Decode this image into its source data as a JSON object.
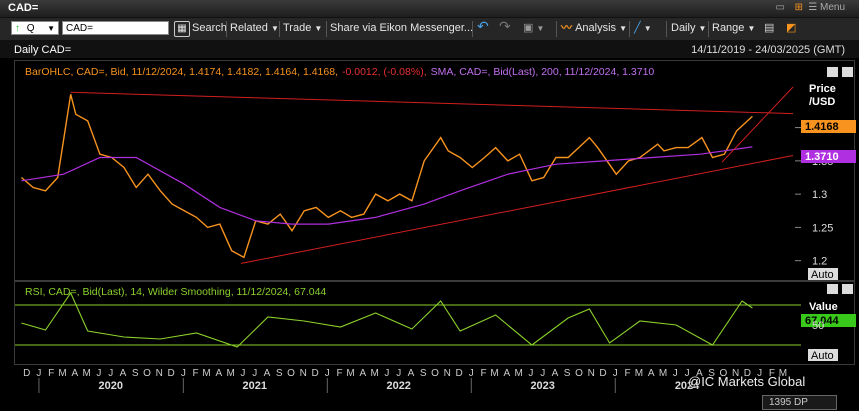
{
  "window": {
    "title": "CAD=",
    "menu_label": "Menu"
  },
  "toolbar": {
    "quote_label": "Q",
    "ric_value": "CAD=",
    "search_label": "Search",
    "related_label": "Related",
    "trade_label": "Trade",
    "share_label": "Share via Eikon Messenger...",
    "analysis_label": "Analysis",
    "interval_label": "Daily",
    "range_label": "Range"
  },
  "header": {
    "chart_title": "Daily CAD=",
    "date_range": "14/11/2019 - 24/03/2025 (GMT)"
  },
  "price_panel": {
    "legend_ohlc": "BarOHLC, CAD=, Bid, 11/12/2024, 1.4174, 1.4182, 1.4164, 1.4168,",
    "legend_change": "-0.0012, (-0.08%),",
    "legend_sma": "SMA, CAD=, Bid(Last), 200, 11/12/2024, 1.3710",
    "axis_title_1": "Price",
    "axis_title_2": "/USD",
    "last_price_tag": "1.4168",
    "sma_tag": "1.3710",
    "auto_label": "Auto",
    "colors": {
      "price": "#f7931e",
      "sma": "#b02fe0",
      "trend": "#d21f1f",
      "price_tag_bg": "#f7931e",
      "sma_tag_bg": "#b02fe0"
    }
  },
  "rsi_panel": {
    "legend": "RSI, CAD=, Bid(Last), 14, Wilder Smoothing, 11/12/2024, 67.044",
    "axis_title": "Value",
    "value_tag": "67.044",
    "auto_label": "Auto",
    "colors": {
      "rsi": "#8bd12b",
      "level": "#8bd12b",
      "tag_bg": "#39c91a"
    }
  },
  "x_axis": {
    "month_letters": [
      "D",
      "J",
      "F",
      "M",
      "A",
      "M",
      "J",
      "J",
      "A",
      "S",
      "O",
      "N",
      "D",
      "J",
      "F",
      "M",
      "A",
      "M",
      "J",
      "J",
      "A",
      "S",
      "O",
      "N",
      "D",
      "J",
      "F",
      "M",
      "A",
      "M",
      "J",
      "J",
      "A",
      "S",
      "O",
      "N",
      "D",
      "J",
      "F",
      "M",
      "A",
      "M",
      "J",
      "J",
      "A",
      "S",
      "O",
      "N",
      "D",
      "J",
      "F",
      "M",
      "A",
      "M",
      "J",
      "J",
      "A",
      "S",
      "O",
      "N",
      "D",
      "J",
      "F",
      "M"
    ],
    "years": [
      "2020",
      "2021",
      "2022",
      "2023",
      "2024"
    ]
  },
  "watermark": "@IC Markets Global",
  "footer": {
    "zoom_label": "1395 DP"
  },
  "chart_data": [
    {
      "type": "line",
      "title": "Daily CAD=",
      "ylabel": "Price /USD",
      "ylim": [
        1.18,
        1.47
      ],
      "yticks": [
        1.2,
        1.25,
        1.3,
        1.35,
        1.4
      ],
      "x_range": [
        "2019-11-14",
        "2025-03-24"
      ],
      "grid": false,
      "series": [
        {
          "name": "BarOHLC, CAD=, Bid",
          "points": [
            [
              "2019-11-15",
              1.325
            ],
            [
              "2019-12-15",
              1.31
            ],
            [
              "2020-01-15",
              1.305
            ],
            [
              "2020-02-15",
              1.325
            ],
            [
              "2020-03-19",
              1.45
            ],
            [
              "2020-04-01",
              1.42
            ],
            [
              "2020-05-01",
              1.41
            ],
            [
              "2020-06-01",
              1.36
            ],
            [
              "2020-07-01",
              1.355
            ],
            [
              "2020-08-01",
              1.34
            ],
            [
              "2020-09-01",
              1.31
            ],
            [
              "2020-10-01",
              1.33
            ],
            [
              "2020-11-01",
              1.305
            ],
            [
              "2020-12-01",
              1.285
            ],
            [
              "2021-01-01",
              1.275
            ],
            [
              "2021-02-01",
              1.265
            ],
            [
              "2021-03-01",
              1.25
            ],
            [
              "2021-04-01",
              1.255
            ],
            [
              "2021-05-01",
              1.215
            ],
            [
              "2021-06-01",
              1.205
            ],
            [
              "2021-07-01",
              1.26
            ],
            [
              "2021-08-01",
              1.255
            ],
            [
              "2021-09-01",
              1.27
            ],
            [
              "2021-10-01",
              1.245
            ],
            [
              "2021-11-01",
              1.275
            ],
            [
              "2021-12-01",
              1.28
            ],
            [
              "2022-01-01",
              1.265
            ],
            [
              "2022-02-01",
              1.275
            ],
            [
              "2022-03-01",
              1.265
            ],
            [
              "2022-04-01",
              1.27
            ],
            [
              "2022-05-01",
              1.3
            ],
            [
              "2022-06-01",
              1.29
            ],
            [
              "2022-07-01",
              1.3
            ],
            [
              "2022-08-01",
              1.29
            ],
            [
              "2022-09-01",
              1.35
            ],
            [
              "2022-10-13",
              1.385
            ],
            [
              "2022-11-01",
              1.365
            ],
            [
              "2022-12-01",
              1.355
            ],
            [
              "2023-01-01",
              1.34
            ],
            [
              "2023-02-01",
              1.355
            ],
            [
              "2023-03-01",
              1.37
            ],
            [
              "2023-04-01",
              1.35
            ],
            [
              "2023-05-01",
              1.36
            ],
            [
              "2023-06-01",
              1.32
            ],
            [
              "2023-07-01",
              1.325
            ],
            [
              "2023-08-01",
              1.355
            ],
            [
              "2023-09-01",
              1.355
            ],
            [
              "2023-10-25",
              1.385
            ],
            [
              "2023-11-15",
              1.37
            ],
            [
              "2024-01-01",
              1.33
            ],
            [
              "2024-02-01",
              1.35
            ],
            [
              "2024-03-01",
              1.355
            ],
            [
              "2024-04-15",
              1.375
            ],
            [
              "2024-05-01",
              1.365
            ],
            [
              "2024-06-01",
              1.37
            ],
            [
              "2024-07-01",
              1.37
            ],
            [
              "2024-08-05",
              1.385
            ],
            [
              "2024-09-01",
              1.355
            ],
            [
              "2024-10-01",
              1.36
            ],
            [
              "2024-11-01",
              1.395
            ],
            [
              "2024-12-11",
              1.4168
            ]
          ]
        },
        {
          "name": "SMA, CAD=, Bid(Last), 200",
          "points": [
            [
              "2019-11-15",
              1.32
            ],
            [
              "2020-03-01",
              1.33
            ],
            [
              "2020-06-01",
              1.355
            ],
            [
              "2020-09-01",
              1.355
            ],
            [
              "2021-01-01",
              1.315
            ],
            [
              "2021-04-01",
              1.28
            ],
            [
              "2021-07-01",
              1.26
            ],
            [
              "2021-10-01",
              1.255
            ],
            [
              "2022-01-01",
              1.255
            ],
            [
              "2022-05-01",
              1.265
            ],
            [
              "2022-09-01",
              1.285
            ],
            [
              "2022-12-01",
              1.305
            ],
            [
              "2023-04-01",
              1.33
            ],
            [
              "2023-08-01",
              1.345
            ],
            [
              "2023-12-01",
              1.35
            ],
            [
              "2024-04-01",
              1.355
            ],
            [
              "2024-08-01",
              1.36
            ],
            [
              "2024-12-11",
              1.371
            ]
          ]
        },
        {
          "name": "Trend line (upper)",
          "points": [
            [
              "2020-03-19",
              1.453
            ],
            [
              "2025-03-24",
              1.421
            ]
          ]
        },
        {
          "name": "Trend line (lower)",
          "points": [
            [
              "2021-05-25",
              1.196
            ],
            [
              "2025-03-24",
              1.358
            ]
          ]
        },
        {
          "name": "Trend line (short-term)",
          "points": [
            [
              "2024-09-25",
              1.348
            ],
            [
              "2025-03-24",
              1.461
            ]
          ]
        }
      ]
    },
    {
      "type": "line",
      "title": "RSI, CAD=, Bid(Last), 14, Wilder Smoothing",
      "ylabel": "Value",
      "ylim": [
        15,
        85
      ],
      "yticks": [
        50
      ],
      "levels": [
        70,
        30
      ],
      "x_range": [
        "2019-11-14",
        "2025-03-24"
      ],
      "series": [
        {
          "name": "RSI",
          "points": [
            [
              "2019-11-15",
              52
            ],
            [
              "2020-01-15",
              45
            ],
            [
              "2020-03-19",
              82
            ],
            [
              "2020-05-01",
              44
            ],
            [
              "2020-08-01",
              38
            ],
            [
              "2020-11-01",
              36
            ],
            [
              "2021-02-01",
              42
            ],
            [
              "2021-05-15",
              28
            ],
            [
              "2021-08-01",
              58
            ],
            [
              "2021-11-01",
              54
            ],
            [
              "2022-02-01",
              48
            ],
            [
              "2022-05-01",
              62
            ],
            [
              "2022-08-01",
              46
            ],
            [
              "2022-10-13",
              74
            ],
            [
              "2022-12-01",
              44
            ],
            [
              "2023-03-01",
              60
            ],
            [
              "2023-06-01",
              30
            ],
            [
              "2023-09-01",
              57
            ],
            [
              "2023-10-25",
              66
            ],
            [
              "2023-12-15",
              32
            ],
            [
              "2024-03-01",
              54
            ],
            [
              "2024-06-01",
              50
            ],
            [
              "2024-09-01",
              30
            ],
            [
              "2024-11-15",
              74
            ],
            [
              "2024-12-11",
              67.044
            ]
          ]
        }
      ]
    }
  ]
}
